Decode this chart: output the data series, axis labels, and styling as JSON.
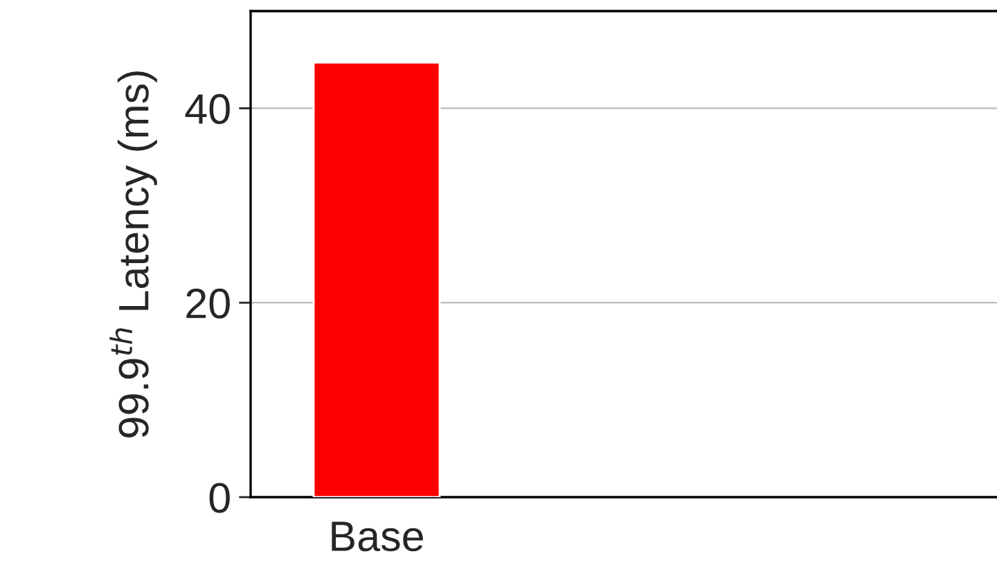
{
  "chart_data": {
    "type": "bar",
    "ylabel": "99.9$^{th}$ Latency (ms)",
    "categories": [
      "Base",
      null,
      null
    ],
    "series": [
      {
        "color": "#ff0000",
        "values": [
          44.7,
          null,
          null
        ]
      }
    ],
    "ylim": [
      0,
      50
    ],
    "yticks": [
      0,
      20,
      40
    ],
    "grid": "y",
    "legend": false
  }
}
